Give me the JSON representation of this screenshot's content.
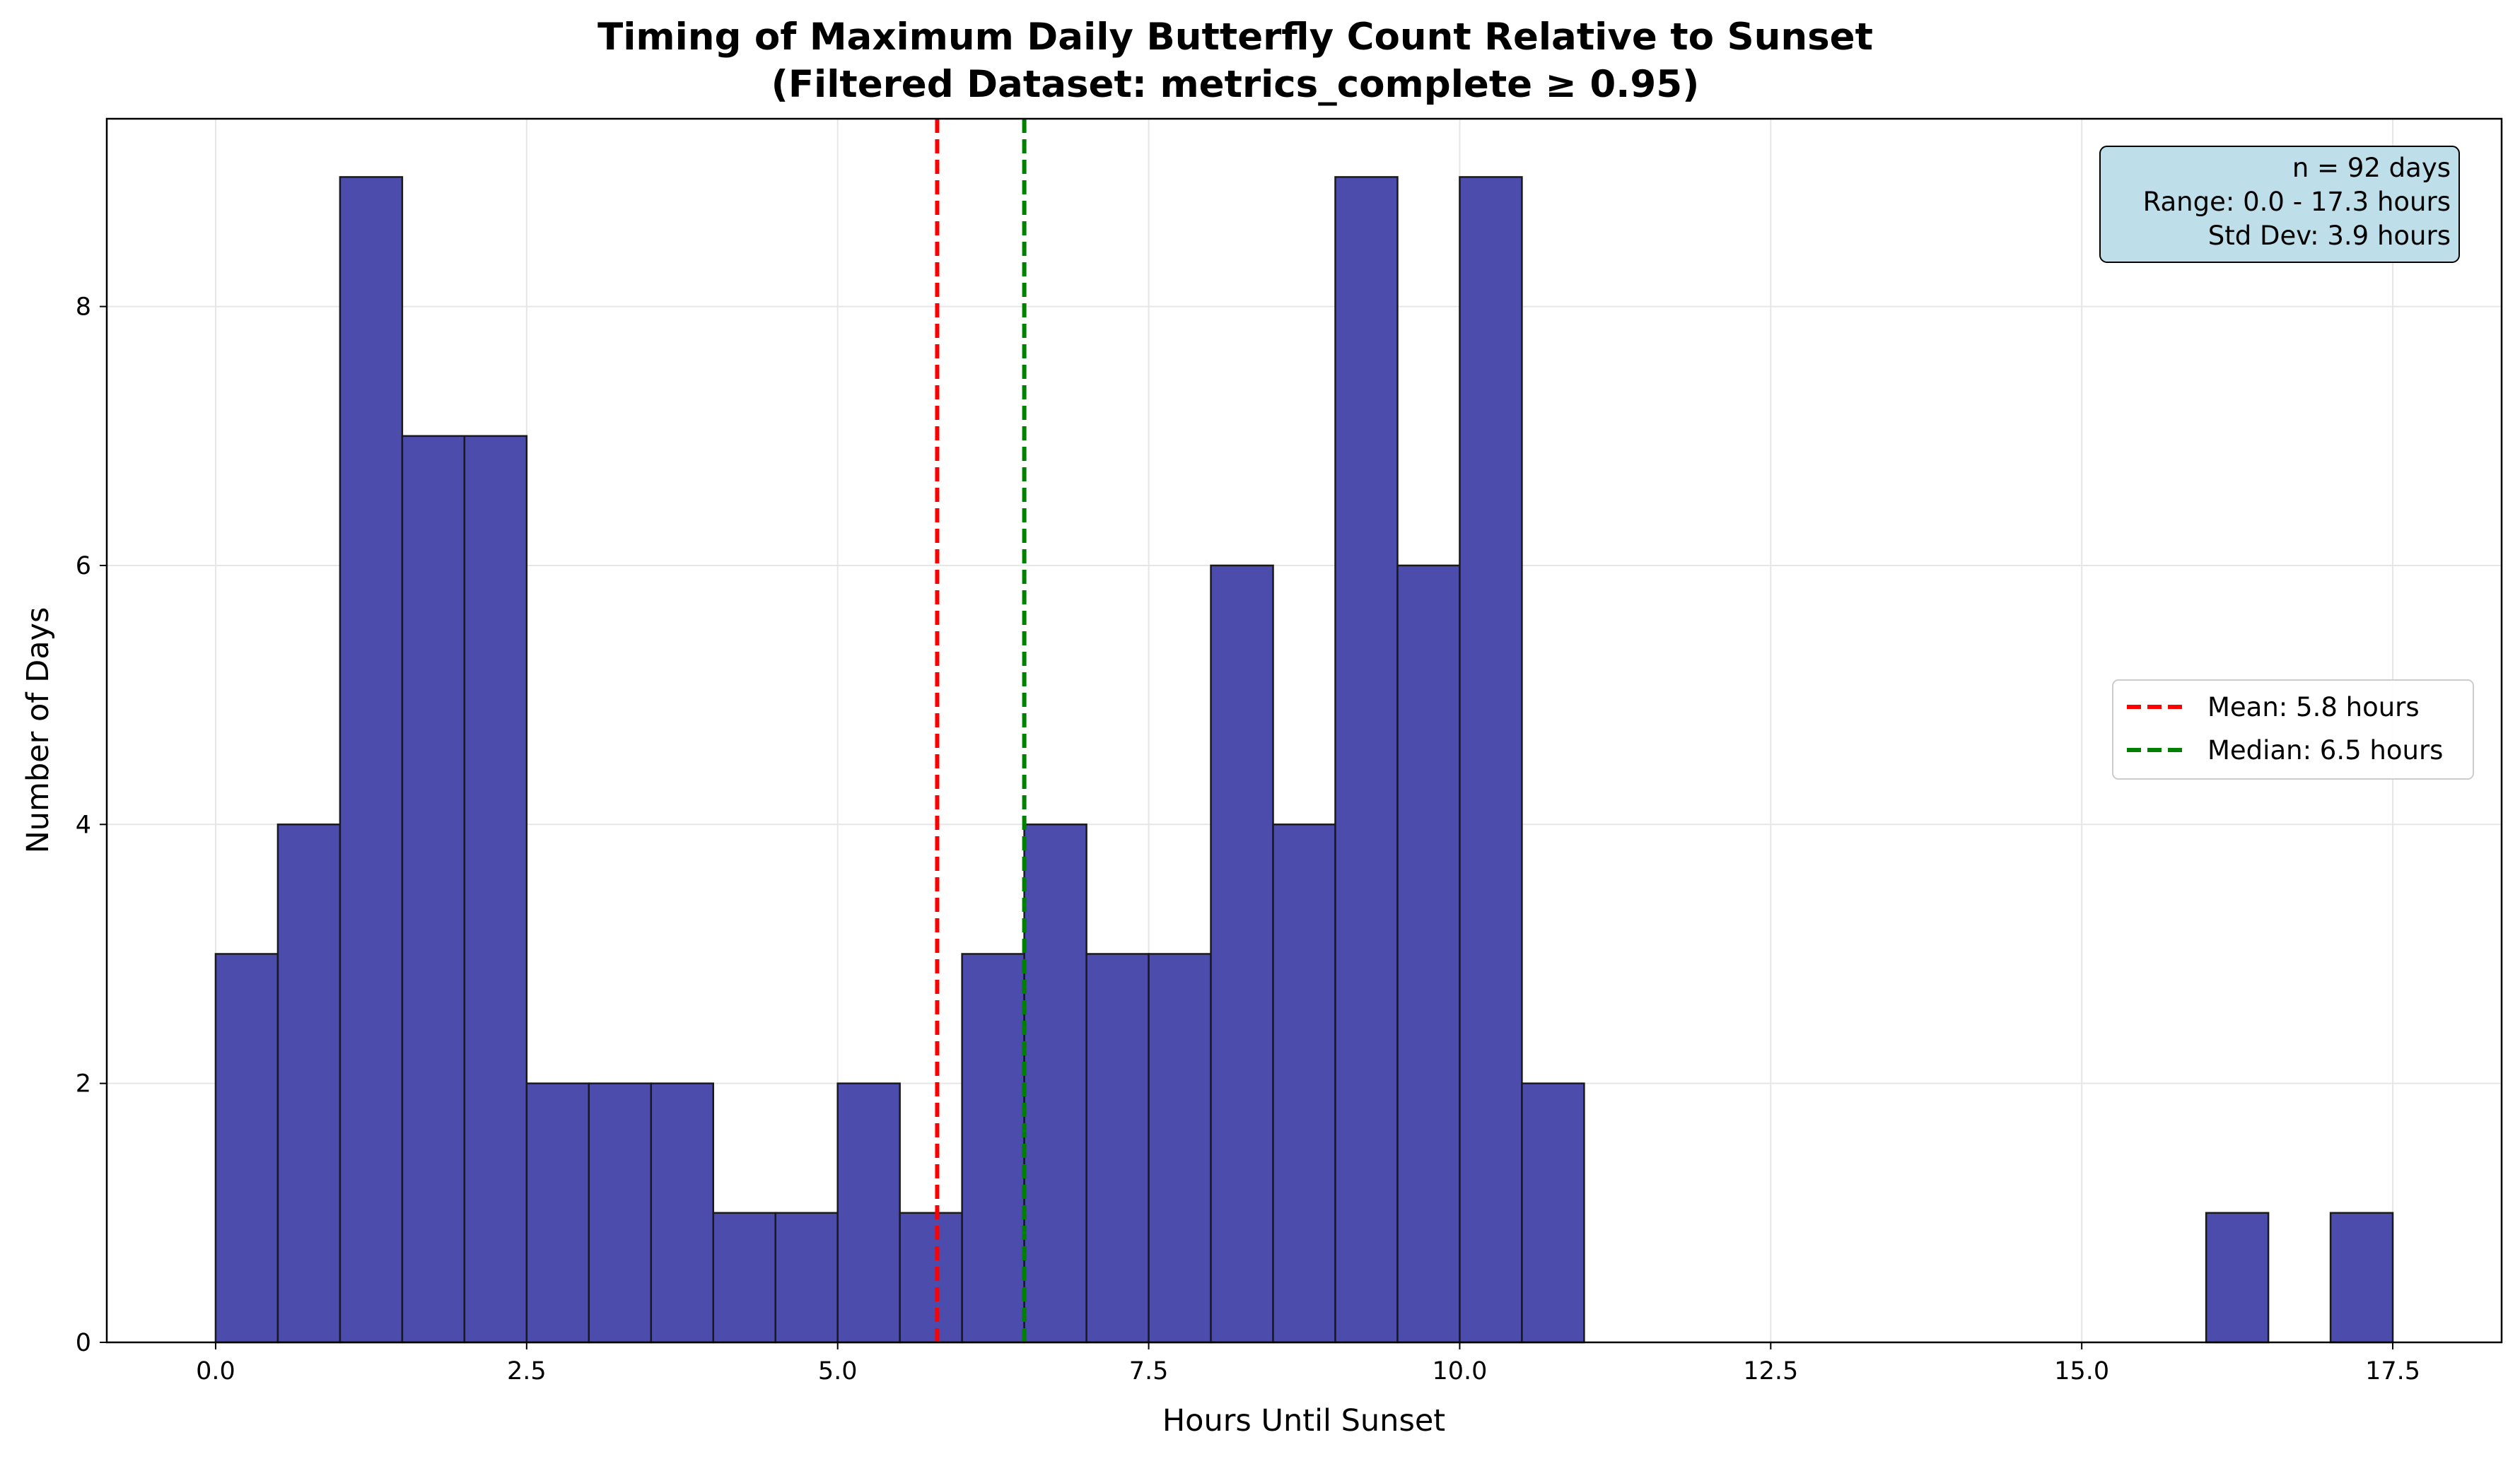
{
  "chart_data": {
    "type": "bar",
    "subtype": "histogram",
    "title": "Timing of Maximum Daily Butterfly Count Relative to Sunset",
    "subtitle": "(Filtered Dataset: metrics_complete ≥ 0.95)",
    "xlabel": "Hours Until Sunset",
    "ylabel": "Number of Days",
    "xlim": [
      -0.875,
      18.375
    ],
    "ylim": [
      0,
      9.45
    ],
    "bin_width": 0.5,
    "bins": [
      {
        "x0": 0.0,
        "count": 3
      },
      {
        "x0": 0.5,
        "count": 4
      },
      {
        "x0": 1.0,
        "count": 9
      },
      {
        "x0": 1.5,
        "count": 7
      },
      {
        "x0": 2.0,
        "count": 7
      },
      {
        "x0": 2.5,
        "count": 2
      },
      {
        "x0": 3.0,
        "count": 2
      },
      {
        "x0": 3.5,
        "count": 2
      },
      {
        "x0": 4.0,
        "count": 1
      },
      {
        "x0": 4.5,
        "count": 1
      },
      {
        "x0": 5.0,
        "count": 2
      },
      {
        "x0": 5.5,
        "count": 1
      },
      {
        "x0": 6.0,
        "count": 3
      },
      {
        "x0": 6.5,
        "count": 4
      },
      {
        "x0": 7.0,
        "count": 3
      },
      {
        "x0": 7.5,
        "count": 3
      },
      {
        "x0": 8.0,
        "count": 6
      },
      {
        "x0": 8.5,
        "count": 4
      },
      {
        "x0": 9.0,
        "count": 9
      },
      {
        "x0": 9.5,
        "count": 6
      },
      {
        "x0": 10.0,
        "count": 9
      },
      {
        "x0": 10.5,
        "count": 2
      },
      {
        "x0": 16.0,
        "count": 1
      },
      {
        "x0": 17.0,
        "count": 1
      }
    ],
    "x_ticks": [
      "0.0",
      "2.5",
      "5.0",
      "7.5",
      "10.0",
      "12.5",
      "15.0",
      "17.5"
    ],
    "x_tick_values": [
      0,
      2.5,
      5,
      7.5,
      10,
      12.5,
      15,
      17.5
    ],
    "y_ticks": [
      "0",
      "2",
      "4",
      "6",
      "8"
    ],
    "y_tick_values": [
      0,
      2,
      4,
      6,
      8
    ],
    "lines": [
      {
        "label": "Mean: 5.8 hours",
        "x": 5.8,
        "color": "#ff0000",
        "style": "dashed"
      },
      {
        "label": "Median: 6.5 hours",
        "x": 6.5,
        "color": "#008000",
        "style": "dashed"
      }
    ],
    "legend_position": "center-right",
    "stats_box": [
      "n = 92 days",
      "Range: 0.0 - 17.3 hours",
      "Std Dev: 3.9 hours"
    ],
    "grid": true,
    "colors": {
      "bar_fill": "#4b4cab",
      "bar_edge": "#1a1a1a",
      "stats_box_fill": "#bedfea",
      "grid": "#e6e6e6"
    }
  }
}
